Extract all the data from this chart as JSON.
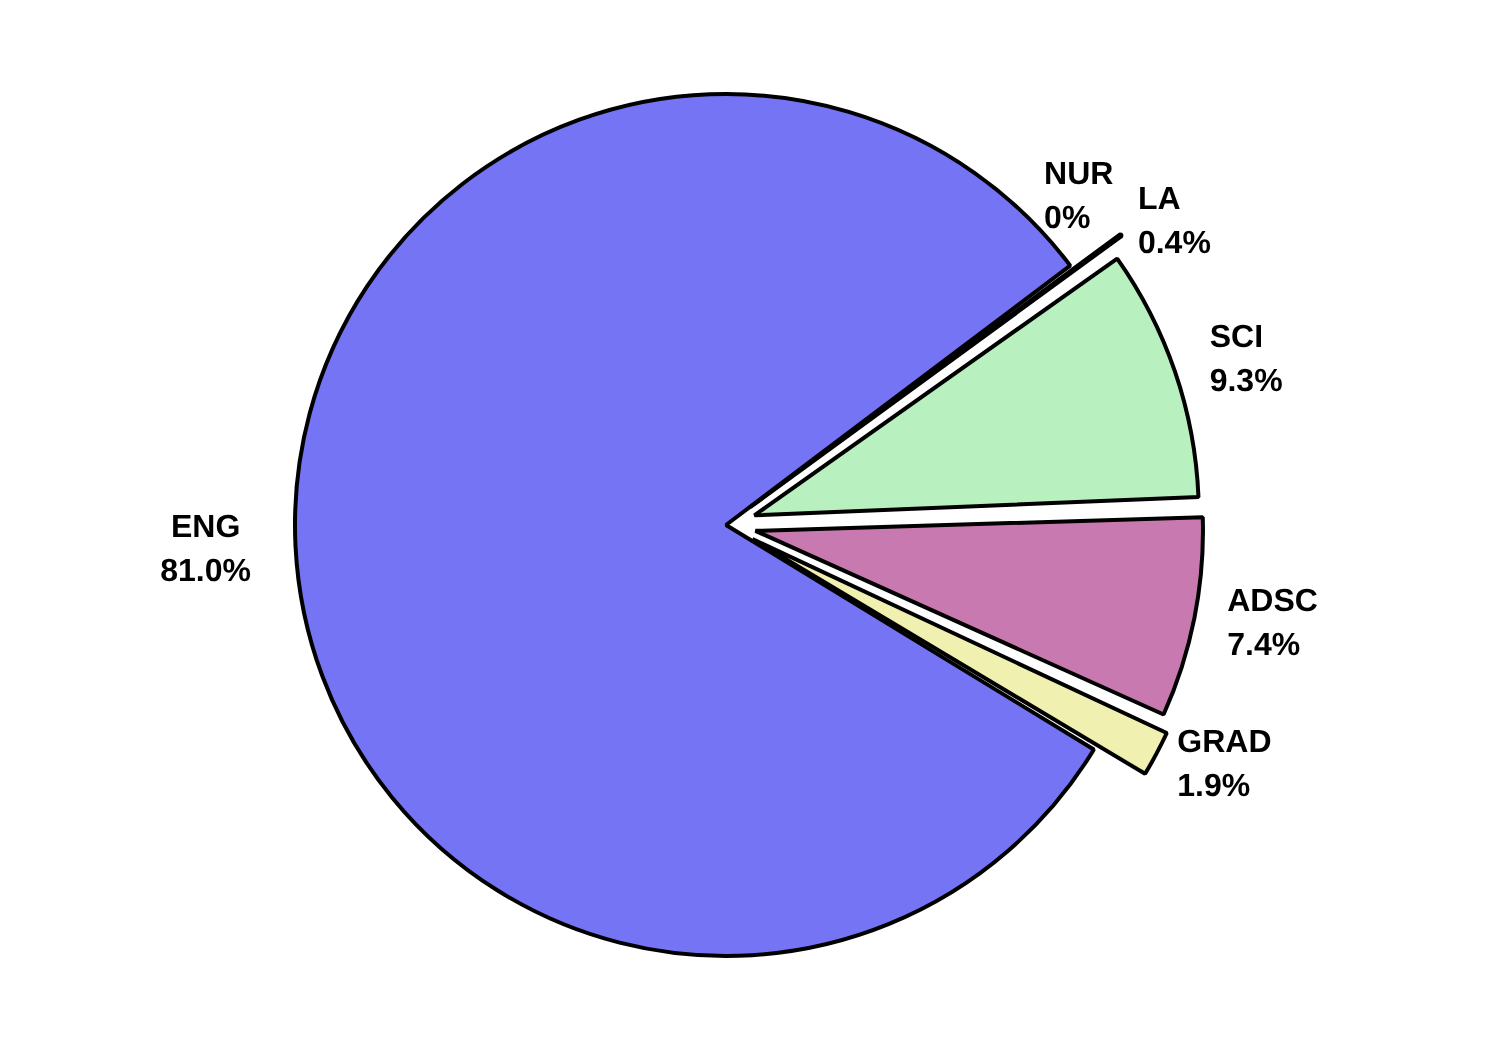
{
  "chart_data": {
    "type": "pie",
    "categories": [
      "NUR",
      "LA",
      "SCI",
      "ADSC",
      "GRAD",
      "ENG"
    ],
    "values": [
      0,
      0.4,
      9.3,
      7.4,
      1.9,
      81.0
    ],
    "value_labels": [
      "0%",
      "0.4%",
      "9.3%",
      "7.4%",
      "1.9%",
      "81.0%"
    ],
    "colors": [
      "#c04040",
      "#e06040",
      "#b8f0c0",
      "#c87ab0",
      "#f0f0b0",
      "#7474f4"
    ],
    "legend": false
  }
}
